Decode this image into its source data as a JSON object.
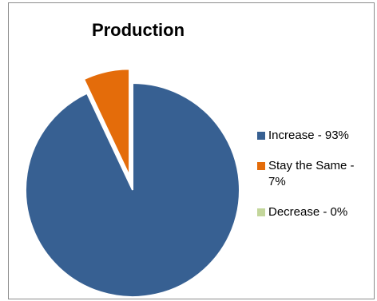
{
  "chart_data": {
    "type": "pie",
    "title": "Production",
    "slices": [
      {
        "label": "Increase - 93%",
        "value": 93,
        "color": "#376092",
        "exploded": false
      },
      {
        "label": "Stay the Same - 7%",
        "value": 7,
        "color": "#E46C0A",
        "exploded": true
      },
      {
        "label": "Decrease - 0%",
        "value": 0,
        "color": "#C3D69B",
        "exploded": false
      }
    ],
    "legend_position": "right",
    "start_angle_deg": 0,
    "direction": "clockwise"
  }
}
